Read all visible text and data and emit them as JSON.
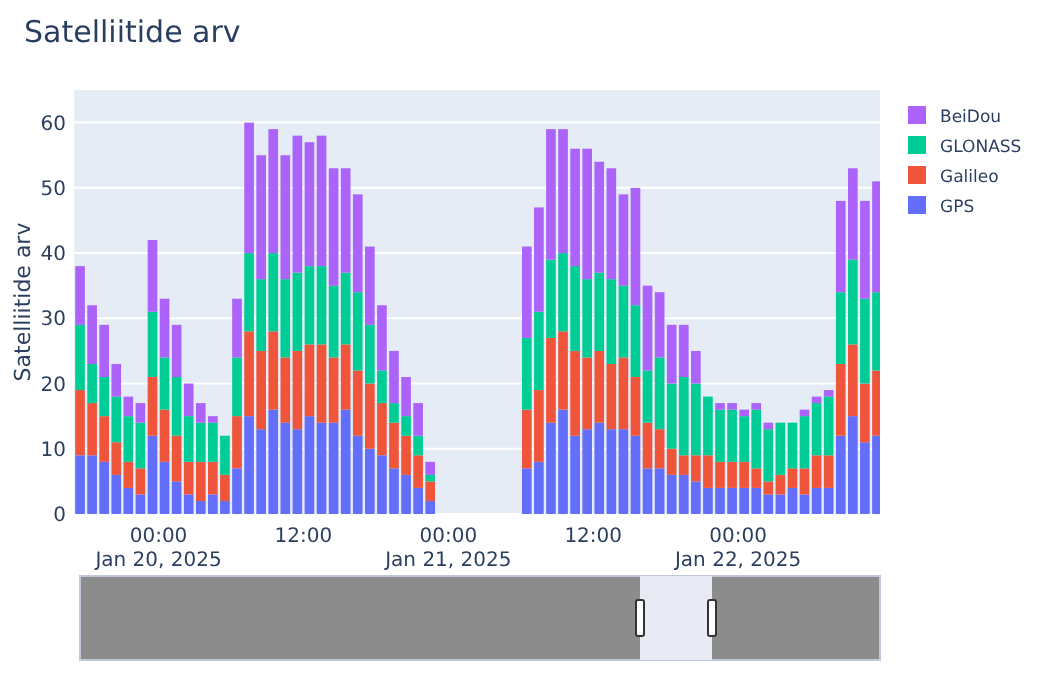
{
  "chart_data": {
    "type": "bar",
    "stacked": true,
    "title": "Satelliitide arv",
    "ylabel": "Satelliitide arv",
    "x": [
      "2025-01-19T17:30",
      "2025-01-19T18:30",
      "2025-01-19T19:30",
      "2025-01-19T20:30",
      "2025-01-19T21:30",
      "2025-01-19T22:30",
      "2025-01-19T23:30",
      "2025-01-20T00:30",
      "2025-01-20T01:30",
      "2025-01-20T02:30",
      "2025-01-20T03:30",
      "2025-01-20T04:30",
      "2025-01-20T05:30",
      "2025-01-20T06:30",
      "2025-01-20T07:30",
      "2025-01-20T08:30",
      "2025-01-20T09:30",
      "2025-01-20T10:30",
      "2025-01-20T11:30",
      "2025-01-20T12:30",
      "2025-01-20T13:30",
      "2025-01-20T14:30",
      "2025-01-20T15:30",
      "2025-01-20T16:30",
      "2025-01-20T17:30",
      "2025-01-20T18:30",
      "2025-01-20T19:30",
      "2025-01-20T20:30",
      "2025-01-20T21:30",
      "2025-01-20T22:30",
      "2025-01-21T06:30",
      "2025-01-21T07:30",
      "2025-01-21T08:30",
      "2025-01-21T09:30",
      "2025-01-21T10:30",
      "2025-01-21T11:30",
      "2025-01-21T12:30",
      "2025-01-21T13:30",
      "2025-01-21T14:30",
      "2025-01-21T15:30",
      "2025-01-21T16:30",
      "2025-01-21T17:30",
      "2025-01-21T18:30",
      "2025-01-21T19:30",
      "2025-01-21T20:30",
      "2025-01-21T21:30",
      "2025-01-21T22:30",
      "2025-01-21T23:30",
      "2025-01-22T00:30",
      "2025-01-22T01:30",
      "2025-01-22T02:30",
      "2025-01-22T03:30",
      "2025-01-22T04:30",
      "2025-01-22T05:30",
      "2025-01-22T06:30",
      "2025-01-22T07:30",
      "2025-01-22T08:30",
      "2025-01-22T09:30",
      "2025-01-22T10:30",
      "2025-01-22T11:30"
    ],
    "series": [
      {
        "name": "GPS",
        "color": "#636efa",
        "values": [
          9,
          9,
          8,
          6,
          4,
          3,
          12,
          8,
          5,
          3,
          2,
          3,
          2,
          7,
          15,
          13,
          16,
          14,
          13,
          15,
          14,
          14,
          16,
          12,
          10,
          9,
          7,
          6,
          4,
          2,
          7,
          8,
          14,
          16,
          12,
          13,
          14,
          13,
          13,
          12,
          7,
          7,
          6,
          6,
          5,
          4,
          4,
          4,
          4,
          4,
          3,
          3,
          4,
          3,
          4,
          4,
          12,
          15,
          11,
          12
        ]
      },
      {
        "name": "Galileo",
        "color": "#ef553b",
        "values": [
          10,
          8,
          7,
          5,
          4,
          4,
          9,
          8,
          7,
          5,
          6,
          5,
          4,
          8,
          13,
          12,
          12,
          10,
          12,
          11,
          12,
          10,
          10,
          10,
          10,
          8,
          7,
          6,
          5,
          3,
          9,
          11,
          13,
          12,
          13,
          11,
          11,
          10,
          11,
          9,
          7,
          6,
          4,
          3,
          4,
          5,
          4,
          4,
          4,
          3,
          2,
          3,
          3,
          4,
          5,
          5,
          11,
          11,
          9,
          10
        ]
      },
      {
        "name": "GLONASS",
        "color": "#00cc96",
        "values": [
          10,
          6,
          6,
          7,
          7,
          7,
          10,
          8,
          9,
          7,
          6,
          6,
          6,
          9,
          12,
          11,
          12,
          12,
          12,
          12,
          12,
          11,
          11,
          12,
          9,
          5,
          3,
          3,
          3,
          1,
          11,
          12,
          12,
          12,
          13,
          12,
          12,
          13,
          11,
          11,
          8,
          11,
          10,
          12,
          11,
          9,
          8,
          8,
          7,
          9,
          8,
          8,
          7,
          8,
          8,
          9,
          11,
          13,
          13,
          12
        ]
      },
      {
        "name": "BeiDou",
        "color": "#ab63fa",
        "values": [
          9,
          9,
          8,
          5,
          3,
          3,
          11,
          9,
          8,
          5,
          3,
          1,
          0,
          9,
          20,
          19,
          19,
          19,
          21,
          19,
          20,
          18,
          16,
          15,
          12,
          10,
          8,
          6,
          5,
          2,
          14,
          16,
          20,
          19,
          18,
          20,
          17,
          17,
          14,
          18,
          13,
          10,
          9,
          8,
          5,
          0,
          1,
          1,
          1,
          1,
          1,
          0,
          0,
          1,
          1,
          1,
          14,
          14,
          15,
          17
        ]
      }
    ],
    "xlim": [
      "2025-01-19T17:00",
      "2025-01-22T11:45"
    ],
    "xticks": [
      {
        "value": "2025-01-20T00:00",
        "label": "00:00\nJan 20, 2025"
      },
      {
        "value": "2025-01-20T12:00",
        "label": "12:00"
      },
      {
        "value": "2025-01-21T00:00",
        "label": "00:00\nJan 21, 2025"
      },
      {
        "value": "2025-01-21T12:00",
        "label": "12:00"
      },
      {
        "value": "2025-01-22T00:00",
        "label": "00:00\nJan 22, 2025"
      }
    ],
    "ylim": [
      0,
      65
    ],
    "yticks": [
      0,
      10,
      20,
      30,
      40,
      50,
      60
    ],
    "grid": "y",
    "legend": "top right"
  }
}
